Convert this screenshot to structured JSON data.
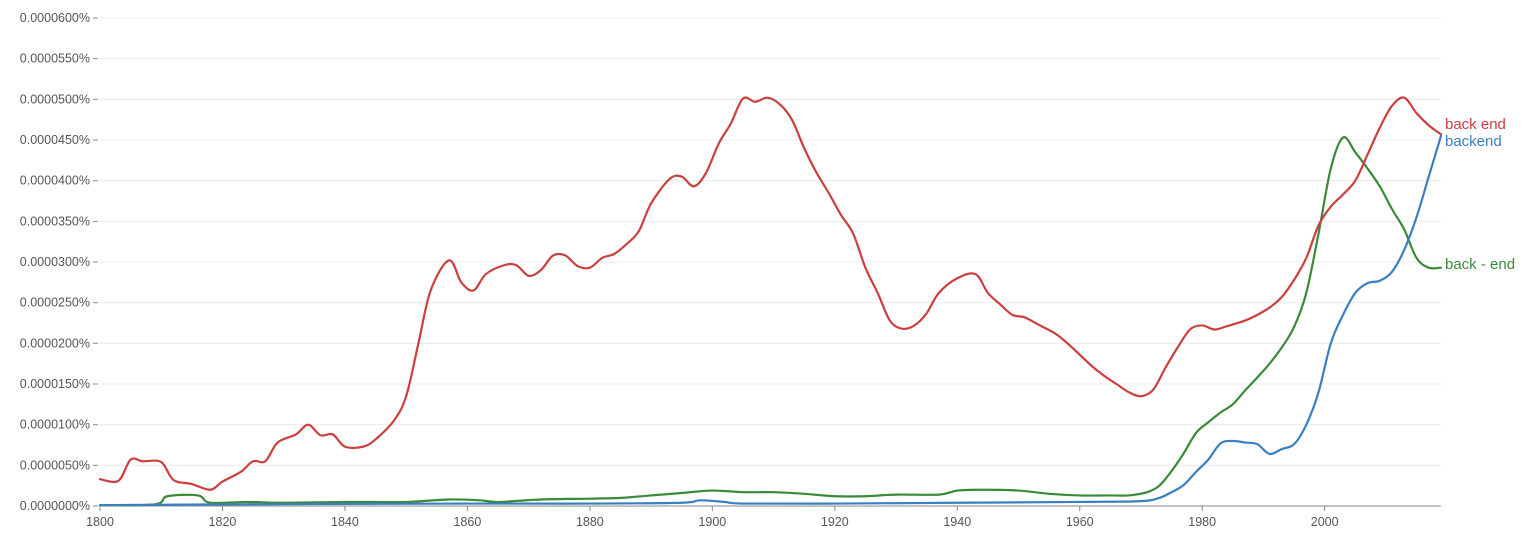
{
  "chart_data": {
    "type": "line",
    "title": "",
    "xlabel": "",
    "ylabel": "",
    "xlim": [
      1800,
      2019
    ],
    "ylim": [
      0,
      6e-07
    ],
    "grid": true,
    "y_ticks": [
      {
        "value": 0,
        "label": "0.0000000%"
      },
      {
        "value": 5e-08,
        "label": "0.0000050%"
      },
      {
        "value": 1e-07,
        "label": "0.0000100%"
      },
      {
        "value": 1.5e-07,
        "label": "0.0000150%"
      },
      {
        "value": 2e-07,
        "label": "0.0000200%"
      },
      {
        "value": 2.5e-07,
        "label": "0.0000250%"
      },
      {
        "value": 3e-07,
        "label": "0.0000300%"
      },
      {
        "value": 3.5e-07,
        "label": "0.0000350%"
      },
      {
        "value": 4e-07,
        "label": "0.0000400%"
      },
      {
        "value": 4.5e-07,
        "label": "0.0000450%"
      },
      {
        "value": 5e-07,
        "label": "0.0000500%"
      },
      {
        "value": 5.5e-07,
        "label": "0.0000550%"
      },
      {
        "value": 6e-07,
        "label": "0.0000600%"
      }
    ],
    "x_ticks": [
      {
        "value": 1800,
        "label": "1800"
      },
      {
        "value": 1820,
        "label": "1820"
      },
      {
        "value": 1840,
        "label": "1840"
      },
      {
        "value": 1860,
        "label": "1860"
      },
      {
        "value": 1880,
        "label": "1880"
      },
      {
        "value": 1900,
        "label": "1900"
      },
      {
        "value": 1920,
        "label": "1920"
      },
      {
        "value": 1940,
        "label": "1940"
      },
      {
        "value": 1960,
        "label": "1960"
      },
      {
        "value": 1980,
        "label": "1980"
      },
      {
        "value": 2000,
        "label": "2000"
      }
    ],
    "series": [
      {
        "name": "back end",
        "color": "#cc3f3f",
        "points": [
          [
            1800,
            3.3e-08
          ],
          [
            1803,
            3.1e-08
          ],
          [
            1805,
            5.7e-08
          ],
          [
            1807,
            5.5e-08
          ],
          [
            1810,
            5.4e-08
          ],
          [
            1812,
            3.2e-08
          ],
          [
            1815,
            2.7e-08
          ],
          [
            1818,
            2e-08
          ],
          [
            1820,
            3e-08
          ],
          [
            1823,
            4.2e-08
          ],
          [
            1825,
            5.5e-08
          ],
          [
            1827,
            5.5e-08
          ],
          [
            1829,
            7.8e-08
          ],
          [
            1832,
            8.8e-08
          ],
          [
            1834,
            1e-07
          ],
          [
            1836,
            8.7e-08
          ],
          [
            1838,
            8.8e-08
          ],
          [
            1840,
            7.3e-08
          ],
          [
            1843,
            7.3e-08
          ],
          [
            1845,
            8.2e-08
          ],
          [
            1848,
            1.05e-07
          ],
          [
            1850,
            1.35e-07
          ],
          [
            1852,
            2e-07
          ],
          [
            1854,
            2.65e-07
          ],
          [
            1857,
            3.02e-07
          ],
          [
            1859,
            2.75e-07
          ],
          [
            1861,
            2.65e-07
          ],
          [
            1863,
            2.85e-07
          ],
          [
            1866,
            2.96e-07
          ],
          [
            1868,
            2.96e-07
          ],
          [
            1870,
            2.83e-07
          ],
          [
            1872,
            2.9e-07
          ],
          [
            1874,
            3.08e-07
          ],
          [
            1876,
            3.08e-07
          ],
          [
            1878,
            2.95e-07
          ],
          [
            1880,
            2.93e-07
          ],
          [
            1882,
            3.05e-07
          ],
          [
            1884,
            3.1e-07
          ],
          [
            1886,
            3.22e-07
          ],
          [
            1888,
            3.38e-07
          ],
          [
            1890,
            3.72e-07
          ],
          [
            1893,
            4.02e-07
          ],
          [
            1895,
            4.05e-07
          ],
          [
            1897,
            3.93e-07
          ],
          [
            1899,
            4.1e-07
          ],
          [
            1901,
            4.45e-07
          ],
          [
            1903,
            4.7e-07
          ],
          [
            1905,
            5.01e-07
          ],
          [
            1907,
            4.97e-07
          ],
          [
            1909,
            5.02e-07
          ],
          [
            1911,
            4.94e-07
          ],
          [
            1913,
            4.75e-07
          ],
          [
            1915,
            4.4e-07
          ],
          [
            1917,
            4.1e-07
          ],
          [
            1919,
            3.85e-07
          ],
          [
            1921,
            3.58e-07
          ],
          [
            1923,
            3.35e-07
          ],
          [
            1925,
            2.93e-07
          ],
          [
            1927,
            2.62e-07
          ],
          [
            1929,
            2.28e-07
          ],
          [
            1931,
            2.18e-07
          ],
          [
            1933,
            2.22e-07
          ],
          [
            1935,
            2.37e-07
          ],
          [
            1937,
            2.62e-07
          ],
          [
            1940,
            2.8e-07
          ],
          [
            1943,
            2.85e-07
          ],
          [
            1945,
            2.62e-07
          ],
          [
            1947,
            2.48e-07
          ],
          [
            1949,
            2.35e-07
          ],
          [
            1951,
            2.32e-07
          ],
          [
            1953,
            2.24e-07
          ],
          [
            1956,
            2.12e-07
          ],
          [
            1958,
            2e-07
          ],
          [
            1960,
            1.86e-07
          ],
          [
            1962,
            1.72e-07
          ],
          [
            1964,
            1.6e-07
          ],
          [
            1966,
            1.5e-07
          ],
          [
            1968,
            1.4e-07
          ],
          [
            1970,
            1.35e-07
          ],
          [
            1972,
            1.43e-07
          ],
          [
            1974,
            1.7e-07
          ],
          [
            1976,
            1.95e-07
          ],
          [
            1978,
            2.17e-07
          ],
          [
            1980,
            2.22e-07
          ],
          [
            1982,
            2.17e-07
          ],
          [
            1984,
            2.21e-07
          ],
          [
            1987,
            2.28e-07
          ],
          [
            1989,
            2.35e-07
          ],
          [
            1991,
            2.44e-07
          ],
          [
            1993,
            2.57e-07
          ],
          [
            1995,
            2.78e-07
          ],
          [
            1997,
            3.05e-07
          ],
          [
            1999,
            3.45e-07
          ],
          [
            2001,
            3.68e-07
          ],
          [
            2003,
            3.83e-07
          ],
          [
            2005,
            4e-07
          ],
          [
            2007,
            4.32e-07
          ],
          [
            2009,
            4.65e-07
          ],
          [
            2011,
            4.92e-07
          ],
          [
            2013,
            5.02e-07
          ],
          [
            2015,
            4.83e-07
          ],
          [
            2017,
            4.68e-07
          ],
          [
            2019,
            4.57e-07
          ]
        ]
      },
      {
        "name": "backend",
        "color": "#3a7fc1",
        "points": [
          [
            1800,
            1e-09
          ],
          [
            1820,
            2e-09
          ],
          [
            1860,
            3e-09
          ],
          [
            1880,
            3e-09
          ],
          [
            1895,
            4e-09
          ],
          [
            1898,
            7e-09
          ],
          [
            1902,
            5e-09
          ],
          [
            1905,
            3e-09
          ],
          [
            1920,
            3e-09
          ],
          [
            1940,
            4e-09
          ],
          [
            1960,
            5e-09
          ],
          [
            1970,
            6e-09
          ],
          [
            1973,
            1e-08
          ],
          [
            1975,
            1.7e-08
          ],
          [
            1977,
            2.6e-08
          ],
          [
            1979,
            4.2e-08
          ],
          [
            1981,
            5.7e-08
          ],
          [
            1983,
            7.7e-08
          ],
          [
            1985,
            8e-08
          ],
          [
            1987,
            7.8e-08
          ],
          [
            1989,
            7.6e-08
          ],
          [
            1991,
            6.4e-08
          ],
          [
            1993,
            7e-08
          ],
          [
            1995,
            7.6e-08
          ],
          [
            1997,
            1e-07
          ],
          [
            1999,
            1.4e-07
          ],
          [
            2001,
            2e-07
          ],
          [
            2003,
            2.35e-07
          ],
          [
            2005,
            2.62e-07
          ],
          [
            2007,
            2.74e-07
          ],
          [
            2009,
            2.77e-07
          ],
          [
            2011,
            2.88e-07
          ],
          [
            2013,
            3.15e-07
          ],
          [
            2015,
            3.55e-07
          ],
          [
            2017,
            4.05e-07
          ],
          [
            2019,
            4.55e-07
          ]
        ]
      },
      {
        "name": "back - end",
        "color": "#3a8a3a",
        "points": [
          [
            1800,
            1e-09
          ],
          [
            1809,
            2e-09
          ],
          [
            1811,
            1.2e-08
          ],
          [
            1816,
            1.3e-08
          ],
          [
            1818,
            4e-09
          ],
          [
            1824,
            5e-09
          ],
          [
            1830,
            4e-09
          ],
          [
            1840,
            5e-09
          ],
          [
            1850,
            5e-09
          ],
          [
            1857,
            8e-09
          ],
          [
            1862,
            7e-09
          ],
          [
            1865,
            5e-09
          ],
          [
            1872,
            8e-09
          ],
          [
            1880,
            9e-09
          ],
          [
            1885,
            1e-08
          ],
          [
            1890,
            1.3e-08
          ],
          [
            1895,
            1.6e-08
          ],
          [
            1900,
            1.9e-08
          ],
          [
            1905,
            1.7e-08
          ],
          [
            1910,
            1.7e-08
          ],
          [
            1915,
            1.5e-08
          ],
          [
            1920,
            1.2e-08
          ],
          [
            1925,
            1.2e-08
          ],
          [
            1930,
            1.4e-08
          ],
          [
            1937,
            1.4e-08
          ],
          [
            1940,
            1.9e-08
          ],
          [
            1944,
            2e-08
          ],
          [
            1950,
            1.9e-08
          ],
          [
            1955,
            1.5e-08
          ],
          [
            1960,
            1.3e-08
          ],
          [
            1965,
            1.3e-08
          ],
          [
            1968,
            1.3e-08
          ],
          [
            1971,
            1.7e-08
          ],
          [
            1973,
            2.5e-08
          ],
          [
            1975,
            4.3e-08
          ],
          [
            1977,
            6.5e-08
          ],
          [
            1979,
            9e-08
          ],
          [
            1981,
            1.03e-07
          ],
          [
            1983,
            1.15e-07
          ],
          [
            1985,
            1.25e-07
          ],
          [
            1987,
            1.42e-07
          ],
          [
            1989,
            1.58e-07
          ],
          [
            1991,
            1.75e-07
          ],
          [
            1993,
            1.95e-07
          ],
          [
            1995,
            2.2e-07
          ],
          [
            1997,
            2.62e-07
          ],
          [
            1999,
            3.35e-07
          ],
          [
            2001,
            4.15e-07
          ],
          [
            2003,
            4.53e-07
          ],
          [
            2005,
            4.35e-07
          ],
          [
            2007,
            4.15e-07
          ],
          [
            2009,
            3.93e-07
          ],
          [
            2011,
            3.65e-07
          ],
          [
            2013,
            3.4e-07
          ],
          [
            2015,
            3.05e-07
          ],
          [
            2017,
            2.93e-07
          ],
          [
            2019,
            2.93e-07
          ]
        ]
      }
    ]
  }
}
